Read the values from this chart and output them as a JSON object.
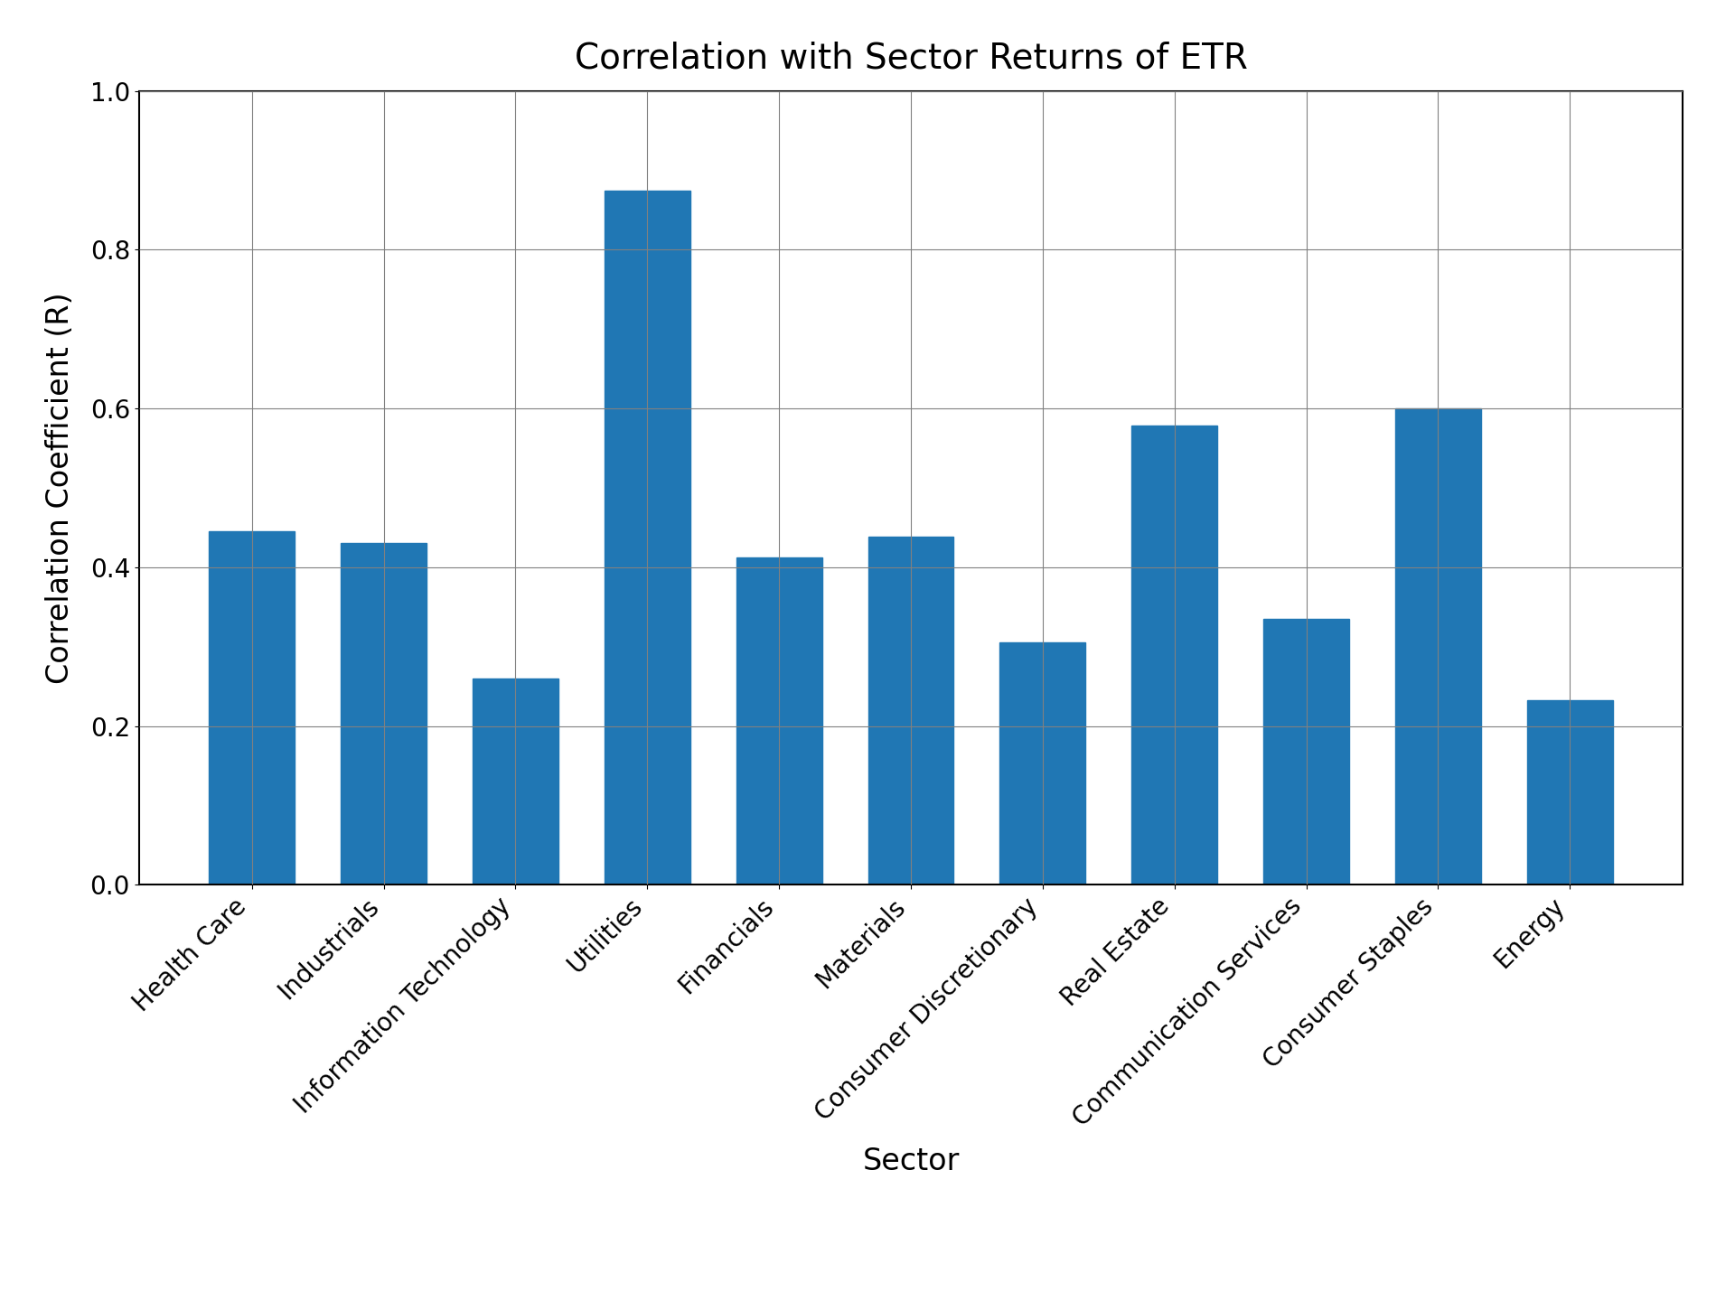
{
  "title": "Correlation with Sector Returns of ETR",
  "xlabel": "Sector",
  "ylabel": "Correlation Coefficient (R)",
  "categories": [
    "Health Care",
    "Industrials",
    "Information Technology",
    "Utilities",
    "Financials",
    "Materials",
    "Consumer Discretionary",
    "Real Estate",
    "Communication Services",
    "Consumer Staples",
    "Energy"
  ],
  "values": [
    0.445,
    0.43,
    0.26,
    0.875,
    0.412,
    0.438,
    0.305,
    0.578,
    0.335,
    0.6,
    0.232
  ],
  "bar_color": "#2077b4",
  "ylim": [
    0.0,
    1.0
  ],
  "yticks": [
    0.0,
    0.2,
    0.4,
    0.6,
    0.8,
    1.0
  ],
  "title_fontsize": 28,
  "label_fontsize": 24,
  "tick_fontsize": 20,
  "figsize": [
    19.2,
    14.4
  ],
  "dpi": 100,
  "bar_width": 0.65
}
